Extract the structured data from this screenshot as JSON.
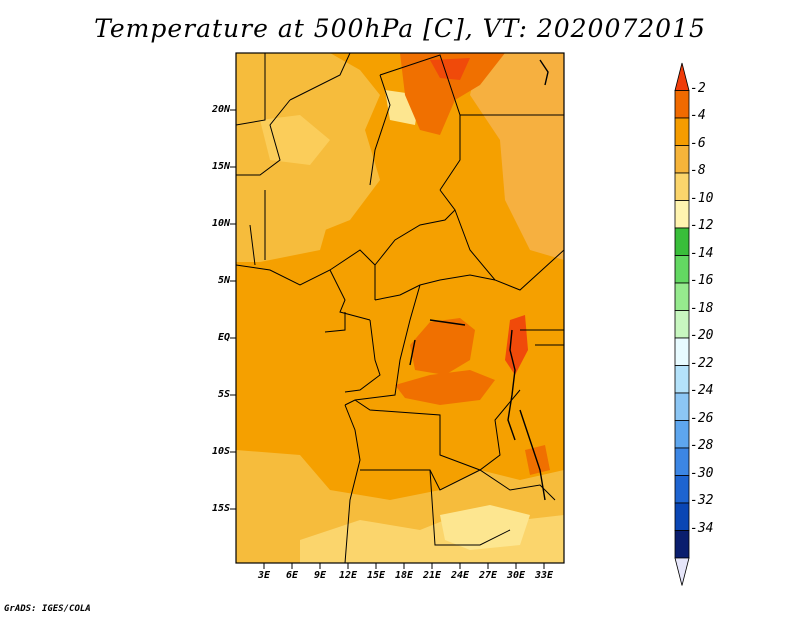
{
  "title": "Temperature at 500hPa [C], VT: 2020072015",
  "footer": "GrADS: IGES/COLA",
  "map": {
    "lat_labels": [
      "20N",
      "15N",
      "10N",
      "5N",
      "EQ",
      "5S",
      "10S",
      "15S"
    ],
    "lon_labels": [
      "3E",
      "6E",
      "9E",
      "12E",
      "15E",
      "18E",
      "21E",
      "24E",
      "27E",
      "30E",
      "33E"
    ]
  },
  "colorbar": {
    "labels": [
      "-2",
      "-4",
      "-6",
      "-8",
      "-10",
      "-12",
      "-14",
      "-16",
      "-18",
      "-20",
      "-22",
      "-24",
      "-26",
      "-28",
      "-30",
      "-32",
      "-34"
    ],
    "colors": [
      "#f03c0a",
      "#f06a00",
      "#f59c00",
      "#f6b43a",
      "#fbd56c",
      "#fff4b0",
      "#39be3a",
      "#63d862",
      "#96ea8e",
      "#c8f7c0",
      "#e8fbff",
      "#b4e2fa",
      "#8cc6f4",
      "#5ea6ee",
      "#3c86e4",
      "#1e64d0",
      "#0a46b4",
      "#0a1e6e",
      "#e6e6fa"
    ]
  },
  "colors": {
    "orange_main": "#f5a000",
    "orange_deep": "#f07000",
    "red_orange": "#f04a0a",
    "light_orange": "#f6bc3c",
    "pale_yellow": "#fde690"
  }
}
